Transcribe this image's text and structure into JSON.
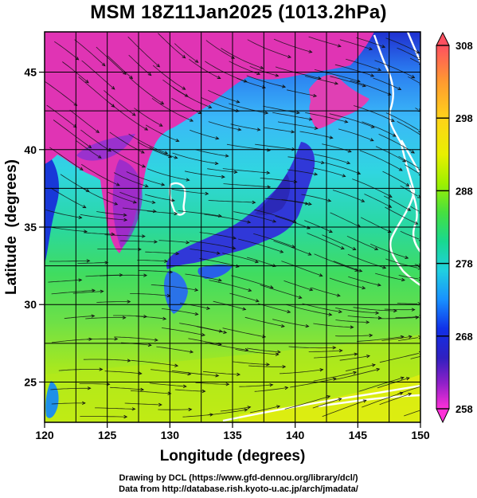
{
  "title": "MSM 18Z11Jan2025 (1013.2hPa)",
  "axes": {
    "xlabel": "Longitude (degrees)",
    "ylabel": "Latitude  (degrees)",
    "x_ticks": [
      "120",
      "125",
      "130",
      "135",
      "140",
      "145",
      "150"
    ],
    "y_ticks": [
      "25",
      "30",
      "35",
      "40",
      "45"
    ],
    "x_range": [
      120,
      150
    ],
    "y_range": [
      22.4,
      47.6
    ],
    "grid": true
  },
  "colorbar": {
    "labels": [
      "308",
      "298",
      "288",
      "278",
      "268",
      "258"
    ],
    "range": [
      258,
      308
    ],
    "colors": [
      "#ff5060",
      "#ff9a30",
      "#ffd21a",
      "#e8f000",
      "#9ef000",
      "#46e040",
      "#18d890",
      "#20d0e0",
      "#1890ff",
      "#1030e8",
      "#3020c0",
      "#9020c8",
      "#ff30d8"
    ]
  },
  "map": {
    "field": "temperature with wind streamlines",
    "land_color": "#e030b0",
    "contour_color": "#ffffff"
  },
  "footer": {
    "line1": "Drawing by DCL (https://www.gfd-dennou.org/library/dcl/)",
    "line2": "Data from http://database.rish.kyoto-u.ac.jp/arch/jmadata/"
  }
}
